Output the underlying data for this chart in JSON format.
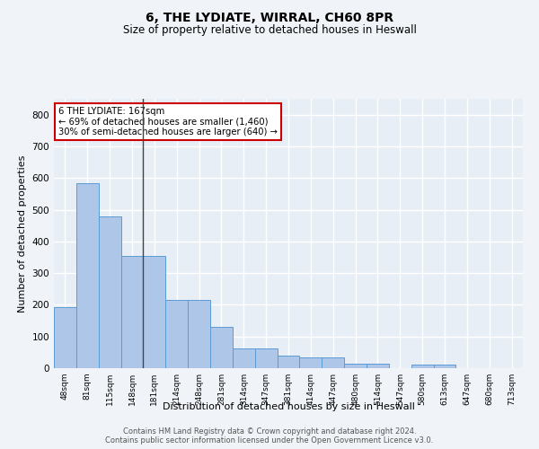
{
  "title1": "6, THE LYDIATE, WIRRAL, CH60 8PR",
  "title2": "Size of property relative to detached houses in Heswall",
  "xlabel": "Distribution of detached houses by size in Heswall",
  "ylabel": "Number of detached properties",
  "categories": [
    "48sqm",
    "81sqm",
    "115sqm",
    "148sqm",
    "181sqm",
    "214sqm",
    "248sqm",
    "281sqm",
    "314sqm",
    "347sqm",
    "381sqm",
    "414sqm",
    "447sqm",
    "480sqm",
    "514sqm",
    "547sqm",
    "580sqm",
    "613sqm",
    "647sqm",
    "680sqm",
    "713sqm"
  ],
  "values": [
    192,
    585,
    480,
    353,
    353,
    215,
    215,
    130,
    63,
    63,
    40,
    33,
    33,
    15,
    15,
    0,
    10,
    10,
    0,
    0,
    0
  ],
  "bar_color": "#aec6e8",
  "bar_edge_color": "#5b9bd5",
  "background_color": "#e8eef5",
  "grid_color": "#ffffff",
  "annotation_text": "6 THE LYDIATE: 167sqm\n← 69% of detached houses are smaller (1,460)\n30% of semi-detached houses are larger (640) →",
  "annotation_box_color": "#ffffff",
  "annotation_box_edge_color": "#cc0000",
  "ylim": [
    0,
    850
  ],
  "yticks": [
    0,
    100,
    200,
    300,
    400,
    500,
    600,
    700,
    800
  ],
  "footer_line1": "Contains HM Land Registry data © Crown copyright and database right 2024.",
  "footer_line2": "Contains public sector information licensed under the Open Government Licence v3.0."
}
